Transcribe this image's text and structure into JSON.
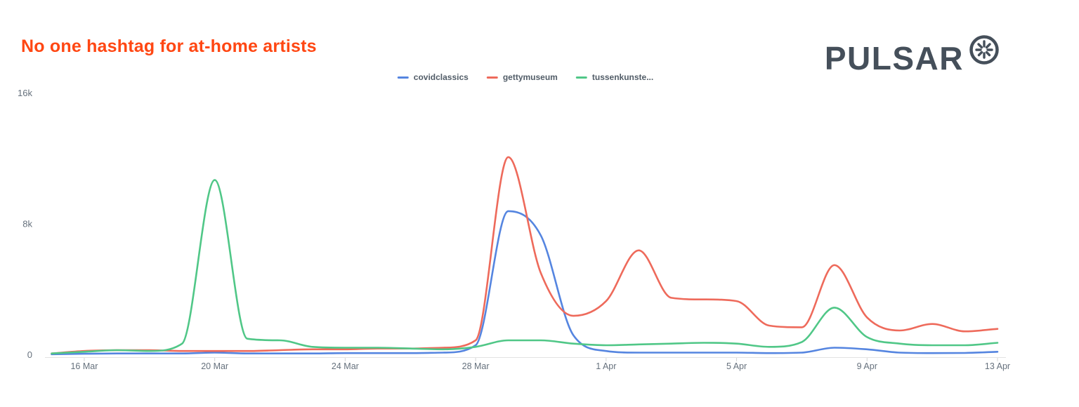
{
  "brand": {
    "wordmark": "PULSAR"
  },
  "chart_data": {
    "type": "line",
    "title": "No one hashtag for at-home artists",
    "title_color": "#ff4713",
    "axis_label_color": "#66717d",
    "legend_label_color": "#525d68",
    "legend_position": "top",
    "grid": false,
    "ylim": [
      0,
      16000
    ],
    "yticks": [
      {
        "value": 16000,
        "label": "16k"
      },
      {
        "value": 8000,
        "label": "8k"
      },
      {
        "value": 0,
        "label": "0"
      }
    ],
    "xticks": [
      "16 Mar",
      "20 Mar",
      "24 Mar",
      "28 Mar",
      "1 Apr",
      "5 Apr",
      "9 Apr",
      "13 Apr"
    ],
    "x": [
      "15 Mar",
      "16 Mar",
      "17 Mar",
      "18 Mar",
      "19 Mar",
      "20 Mar",
      "21 Mar",
      "22 Mar",
      "23 Mar",
      "24 Mar",
      "25 Mar",
      "26 Mar",
      "27 Mar",
      "28 Mar",
      "29 Mar",
      "30 Mar",
      "31 Mar",
      "1 Apr",
      "2 Apr",
      "3 Apr",
      "4 Apr",
      "5 Apr",
      "6 Apr",
      "7 Apr",
      "8 Apr",
      "9 Apr",
      "10 Apr",
      "11 Apr",
      "12 Apr",
      "13 Apr"
    ],
    "series": [
      {
        "name": "covidclassics",
        "color": "#5585e0",
        "values": [
          50,
          80,
          100,
          100,
          100,
          150,
          100,
          100,
          100,
          120,
          120,
          120,
          150,
          600,
          8800,
          7300,
          1200,
          250,
          150,
          150,
          150,
          150,
          120,
          150,
          450,
          350,
          150,
          120,
          130,
          200
        ]
      },
      {
        "name": "gettymuseum",
        "color": "#ee6a5b",
        "values": [
          100,
          250,
          300,
          300,
          250,
          250,
          250,
          300,
          350,
          350,
          400,
          400,
          450,
          900,
          12100,
          5000,
          2400,
          3300,
          6400,
          3500,
          3400,
          3300,
          1800,
          1700,
          5500,
          2300,
          1500,
          1900,
          1450,
          1600
        ]
      },
      {
        "name": "tussenkunste...",
        "color": "#50c787",
        "values": [
          100,
          200,
          300,
          250,
          700,
          10700,
          1000,
          900,
          500,
          450,
          450,
          400,
          350,
          500,
          900,
          900,
          700,
          600,
          650,
          700,
          750,
          700,
          500,
          800,
          2900,
          1100,
          700,
          600,
          600,
          750
        ]
      }
    ]
  }
}
